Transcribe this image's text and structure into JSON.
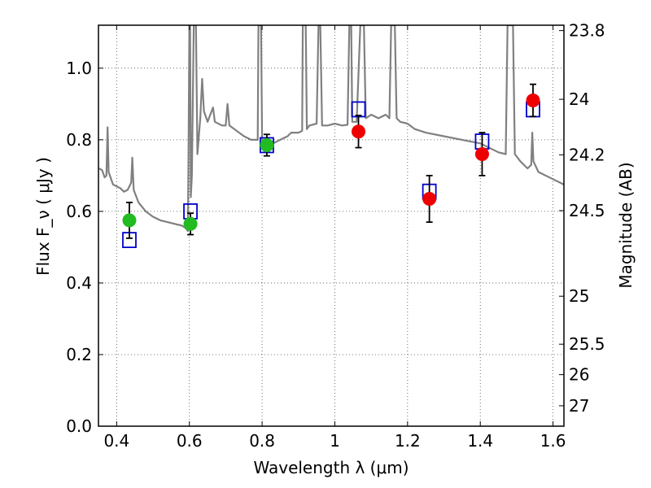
{
  "chart_data": {
    "type": "scatter",
    "xlabel": "Wavelength  λ (μm)",
    "ylabel": "Flux  F_ν  ( μJy )",
    "right_ylabel": "Magnitude (AB)",
    "xlim": [
      0.35,
      1.63
    ],
    "ylim": [
      0.0,
      1.12
    ],
    "grid": true,
    "x_ticks": [
      {
        "v": 0.4,
        "label": "0.4"
      },
      {
        "v": 0.6,
        "label": "0.6"
      },
      {
        "v": 0.8,
        "label": "0.8"
      },
      {
        "v": 1.0,
        "label": "1"
      },
      {
        "v": 1.2,
        "label": "1.2"
      },
      {
        "v": 1.4,
        "label": "1.4"
      },
      {
        "v": 1.6,
        "label": "1.6"
      }
    ],
    "y_ticks": [
      {
        "v": 0.0,
        "label": "0.0"
      },
      {
        "v": 0.2,
        "label": "0.2"
      },
      {
        "v": 0.4,
        "label": "0.4"
      },
      {
        "v": 0.6,
        "label": "0.6"
      },
      {
        "v": 0.8,
        "label": "0.8"
      },
      {
        "v": 1.0,
        "label": "1.0"
      }
    ],
    "right_ticks": [
      {
        "flux": 1.105,
        "label": "23.8"
      },
      {
        "flux": 0.913,
        "label": "24"
      },
      {
        "flux": 0.758,
        "label": "24.2"
      },
      {
        "flux": 0.602,
        "label": "24.5"
      },
      {
        "flux": 0.363,
        "label": "25"
      },
      {
        "flux": 0.229,
        "label": "25.5"
      },
      {
        "flux": 0.144,
        "label": "26"
      },
      {
        "flux": 0.057,
        "label": "27"
      }
    ],
    "series": [
      {
        "kind": "line",
        "color": "#808080",
        "points": [
          [
            0.352,
            0.72
          ],
          [
            0.36,
            0.715
          ],
          [
            0.367,
            0.695
          ],
          [
            0.372,
            0.7
          ],
          [
            0.375,
            0.835
          ],
          [
            0.378,
            0.71
          ],
          [
            0.39,
            0.675
          ],
          [
            0.41,
            0.665
          ],
          [
            0.42,
            0.655
          ],
          [
            0.43,
            0.66
          ],
          [
            0.44,
            0.68
          ],
          [
            0.443,
            0.75
          ],
          [
            0.447,
            0.66
          ],
          [
            0.46,
            0.625
          ],
          [
            0.48,
            0.6
          ],
          [
            0.5,
            0.585
          ],
          [
            0.52,
            0.575
          ],
          [
            0.54,
            0.57
          ],
          [
            0.56,
            0.565
          ],
          [
            0.58,
            0.56
          ],
          [
            0.59,
            0.553
          ],
          [
            0.596,
            0.545
          ],
          [
            0.598,
            0.8
          ],
          [
            0.6,
            1.12
          ],
          [
            0.602,
            1.12
          ],
          [
            0.604,
            0.64
          ],
          [
            0.607,
            0.7
          ],
          [
            0.612,
            1.12
          ],
          [
            0.618,
            1.12
          ],
          [
            0.622,
            0.76
          ],
          [
            0.63,
            0.86
          ],
          [
            0.635,
            0.97
          ],
          [
            0.64,
            0.88
          ],
          [
            0.65,
            0.85
          ],
          [
            0.665,
            0.89
          ],
          [
            0.67,
            0.85
          ],
          [
            0.69,
            0.84
          ],
          [
            0.7,
            0.84
          ],
          [
            0.705,
            0.9
          ],
          [
            0.71,
            0.84
          ],
          [
            0.73,
            0.825
          ],
          [
            0.75,
            0.81
          ],
          [
            0.77,
            0.8
          ],
          [
            0.788,
            0.8
          ],
          [
            0.79,
            1.12
          ],
          [
            0.797,
            1.12
          ],
          [
            0.8,
            0.8
          ],
          [
            0.83,
            0.79
          ],
          [
            0.85,
            0.8
          ],
          [
            0.87,
            0.81
          ],
          [
            0.88,
            0.82
          ],
          [
            0.9,
            0.82
          ],
          [
            0.91,
            0.825
          ],
          [
            0.912,
            1.12
          ],
          [
            0.92,
            1.12
          ],
          [
            0.923,
            0.83
          ],
          [
            0.93,
            0.84
          ],
          [
            0.95,
            0.845
          ],
          [
            0.955,
            1.12
          ],
          [
            0.96,
            1.12
          ],
          [
            0.965,
            0.84
          ],
          [
            0.98,
            0.84
          ],
          [
            1.0,
            0.845
          ],
          [
            1.02,
            0.84
          ],
          [
            1.035,
            0.842
          ],
          [
            1.04,
            1.12
          ],
          [
            1.045,
            1.12
          ],
          [
            1.048,
            0.85
          ],
          [
            1.06,
            0.85
          ],
          [
            1.07,
            1.12
          ],
          [
            1.08,
            1.12
          ],
          [
            1.085,
            0.86
          ],
          [
            1.1,
            0.87
          ],
          [
            1.12,
            0.86
          ],
          [
            1.14,
            0.87
          ],
          [
            1.15,
            0.86
          ],
          [
            1.155,
            1.12
          ],
          [
            1.165,
            1.12
          ],
          [
            1.17,
            0.86
          ],
          [
            1.18,
            0.85
          ],
          [
            1.2,
            0.845
          ],
          [
            1.22,
            0.83
          ],
          [
            1.25,
            0.82
          ],
          [
            1.3,
            0.81
          ],
          [
            1.35,
            0.8
          ],
          [
            1.4,
            0.79
          ],
          [
            1.45,
            0.765
          ],
          [
            1.47,
            0.76
          ],
          [
            1.475,
            1.12
          ],
          [
            1.49,
            1.12
          ],
          [
            1.495,
            0.76
          ],
          [
            1.51,
            0.74
          ],
          [
            1.53,
            0.72
          ],
          [
            1.54,
            0.73
          ],
          [
            1.543,
            0.82
          ],
          [
            1.546,
            0.74
          ],
          [
            1.56,
            0.71
          ],
          [
            1.6,
            0.69
          ],
          [
            1.63,
            0.675
          ]
        ]
      },
      {
        "kind": "open_square",
        "color": "#0000cc",
        "points": [
          [
            0.435,
            0.52
          ],
          [
            0.603,
            0.6
          ],
          [
            0.813,
            0.785
          ],
          [
            1.065,
            0.885
          ],
          [
            1.26,
            0.655
          ],
          [
            1.405,
            0.795
          ],
          [
            1.545,
            0.885
          ]
        ]
      },
      {
        "kind": "point_error",
        "color": "#22bb22",
        "points": [
          {
            "x": 0.435,
            "y": 0.575,
            "err": 0.05
          },
          {
            "x": 0.603,
            "y": 0.565,
            "err": 0.03
          },
          {
            "x": 0.813,
            "y": 0.785,
            "err": 0.03
          }
        ]
      },
      {
        "kind": "point_error",
        "color": "#ee0000",
        "points": [
          {
            "x": 1.065,
            "y": 0.823,
            "err": 0.045
          },
          {
            "x": 1.26,
            "y": 0.635,
            "err": 0.065
          },
          {
            "x": 1.405,
            "y": 0.76,
            "err": 0.06
          },
          {
            "x": 1.545,
            "y": 0.91,
            "err": 0.045
          }
        ]
      }
    ]
  }
}
